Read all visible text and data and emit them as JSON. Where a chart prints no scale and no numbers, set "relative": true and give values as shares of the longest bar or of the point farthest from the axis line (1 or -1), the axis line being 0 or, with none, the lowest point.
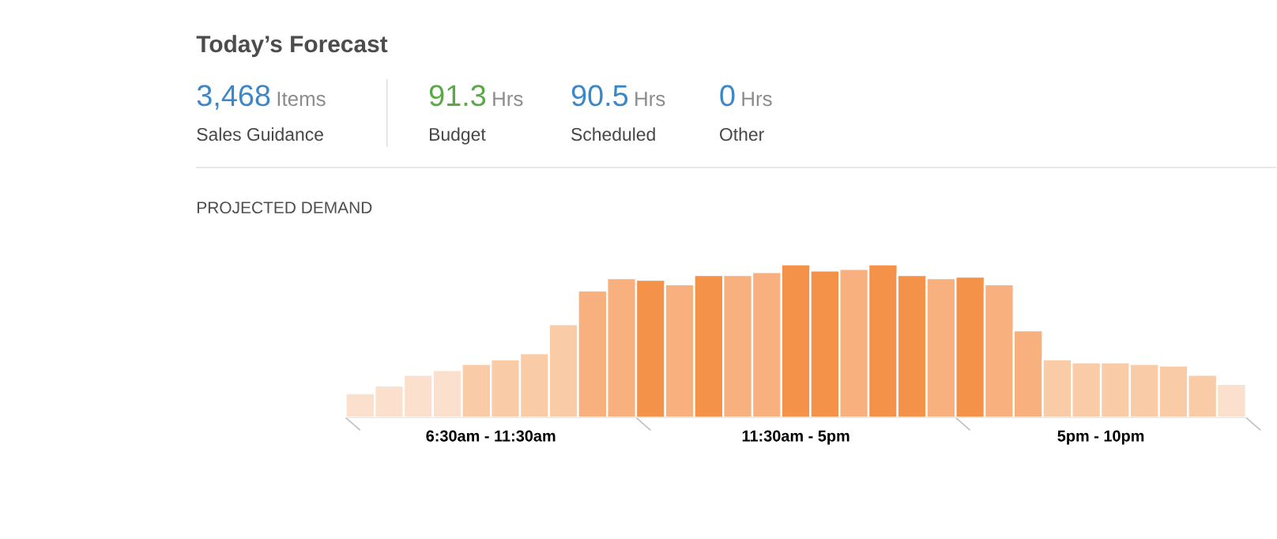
{
  "chart_data": [
    {
      "type": "other",
      "title": "Today’s Forecast",
      "annotations": [
        "3,468",
        "Items",
        "Sales Guidance",
        "91.3",
        "Hrs",
        "Budget",
        "90.5",
        "Hrs",
        "Scheduled",
        "0",
        "Hrs",
        "Other"
      ],
      "colors": [
        "#3b87c9",
        "#5aa846",
        "#3b87c9",
        "#3b87c9"
      ]
    },
    {
      "type": "bar",
      "title": "PROJECTED DEMAND",
      "relative": true,
      "categories": [
        null,
        null,
        null,
        null,
        null,
        null,
        null,
        null,
        null,
        null,
        null,
        null,
        null,
        null,
        null,
        null,
        null,
        null,
        null,
        null,
        null,
        null,
        null,
        null,
        null,
        null,
        null,
        null,
        null,
        null,
        null
      ],
      "values": [
        0.16,
        0.21,
        0.28,
        0.31,
        0.35,
        0.38,
        0.42,
        0.61,
        0.83,
        0.91,
        0.9,
        0.87,
        0.93,
        0.93,
        0.95,
        1.0,
        0.96,
        0.97,
        1.0,
        0.93,
        0.91,
        0.92,
        0.87,
        0.57,
        0.38,
        0.36,
        0.36,
        0.35,
        0.34,
        0.28,
        0.22
      ],
      "colors": [
        "#fbe1cd",
        "#fbe1cd",
        "#fbe1cd",
        "#fbe1cd",
        "#f9cba7",
        "#f9cba7",
        "#f9cba7",
        "#f9cba7",
        "#f7b07e",
        "#f7b07e",
        "#f4924a",
        "#f7b07e",
        "#f4924a",
        "#f7b07e",
        "#f7b07e",
        "#f4924a",
        "#f4924a",
        "#f7b07e",
        "#f4924a",
        "#f4924a",
        "#f7b07e",
        "#f4924a",
        "#f7b07e",
        "#f7b07e",
        "#f9cba7",
        "#f9cba7",
        "#f9cba7",
        "#f9cba7",
        "#f9cba7",
        "#f9cba7",
        "#fbe1cd"
      ],
      "annotations": [
        "6:30am - 11:30am",
        "11:30am - 5pm",
        "5pm - 10pm"
      ]
    }
  ]
}
